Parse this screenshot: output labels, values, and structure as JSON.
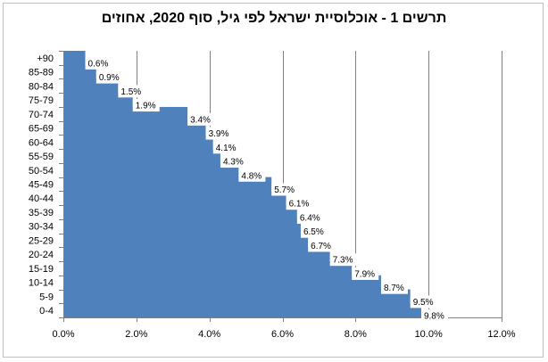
{
  "chart_data": {
    "type": "bar",
    "orientation": "horizontal",
    "title": "תרשים 1 - אוכלוסיית ישראל לפי גיל, סוף 2020, אחוזים",
    "categories": [
      "+90",
      "85-89",
      "80-84",
      "75-79",
      "70-74",
      "65-69",
      "60-64",
      "55-59",
      "50-54",
      "45-49",
      "40-44",
      "35-39",
      "30-34",
      "25-29",
      "20-24",
      "15-19",
      "10-14",
      "5-9",
      "0-4"
    ],
    "values": [
      0.6,
      0.9,
      1.5,
      1.9,
      3.4,
      3.9,
      4.1,
      4.3,
      4.8,
      5.7,
      6.1,
      6.4,
      6.5,
      6.7,
      7.3,
      7.9,
      8.7,
      9.5,
      9.8
    ],
    "data_labels": [
      "0.6%",
      "0.9%",
      "1.5%",
      "1.9%",
      "3.4%",
      "3.9%",
      "4.1%",
      "4.3%",
      "4.8%",
      "5.7%",
      "6.1%",
      "6.4%",
      "6.5%",
      "6.7%",
      "7.3%",
      "7.9%",
      "8.7%",
      "9.5%",
      "9.8%"
    ],
    "xlim": [
      0,
      12
    ],
    "x_ticks": [
      0,
      2,
      4,
      6,
      8,
      10,
      12
    ],
    "x_tick_labels": [
      "0.0%",
      "2.0%",
      "4.0%",
      "6.0%",
      "8.0%",
      "10.0%",
      "12.0%"
    ],
    "xlabel": "",
    "ylabel": "",
    "grid": "vertical",
    "legend": "none",
    "colors": {
      "bar": "#4f81bd",
      "grid": "#808080",
      "axis": "#808080"
    }
  }
}
